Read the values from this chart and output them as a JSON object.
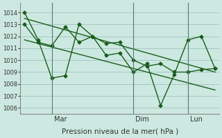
{
  "bg_color": "#cce8e0",
  "grid_color": "#99bbbb",
  "line_color": "#1a5c1a",
  "xlabel": "Pression niveau de la mer( hPa )",
  "ylim": [
    1005.5,
    1014.8
  ],
  "yticks": [
    1006,
    1007,
    1008,
    1009,
    1010,
    1011,
    1012,
    1013,
    1014
  ],
  "xlim": [
    -0.3,
    14.3
  ],
  "vlines": [
    2.0,
    8.0,
    12.0
  ],
  "vlines_labels": [
    "Mar",
    "Dim",
    "Lun"
  ],
  "line1_x": [
    0,
    1,
    2,
    3,
    4,
    5,
    6,
    7,
    8,
    9,
    10,
    11,
    12,
    13,
    14
  ],
  "line1_y": [
    1014.0,
    1011.7,
    1008.5,
    1008.7,
    1013.0,
    1012.0,
    1011.4,
    1011.5,
    1010.0,
    1009.5,
    1009.7,
    1009.0,
    1009.0,
    1009.2,
    1009.3
  ],
  "line2_x": [
    0,
    1,
    2,
    3,
    4,
    5,
    6,
    7,
    8,
    9,
    10,
    11,
    12,
    13,
    14
  ],
  "line2_y": [
    1013.0,
    1011.5,
    1011.2,
    1012.8,
    1011.5,
    1012.0,
    1010.4,
    1010.6,
    1009.0,
    1009.7,
    1006.2,
    1008.8,
    1011.7,
    1012.0,
    1009.3
  ],
  "trend1_x": [
    0,
    14
  ],
  "trend1_y": [
    1013.5,
    1009.0
  ],
  "trend2_x": [
    0,
    14
  ],
  "trend2_y": [
    1011.7,
    1007.5
  ]
}
